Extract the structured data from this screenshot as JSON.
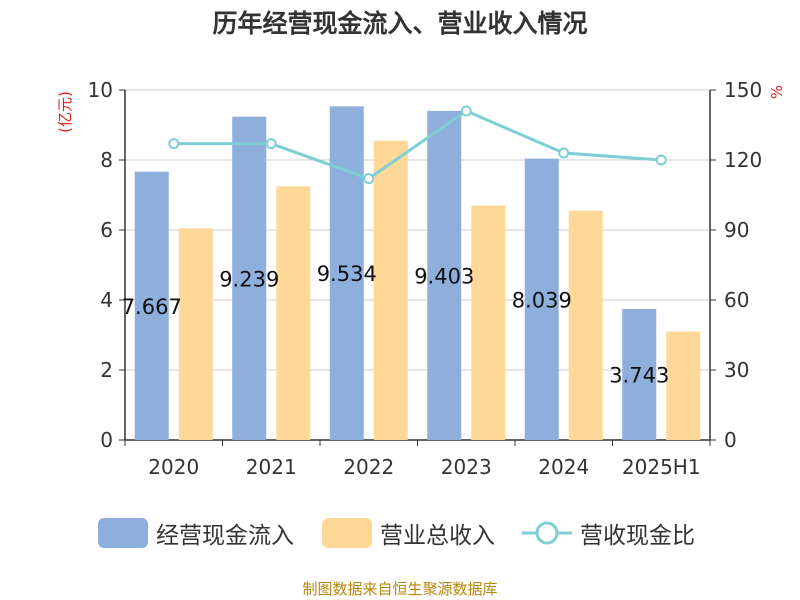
{
  "chart_data": {
    "type": "bar",
    "title": "历年经营现金流入、营业收入情况",
    "categories": [
      "2020",
      "2021",
      "2022",
      "2023",
      "2024",
      "2025H1"
    ],
    "series": [
      {
        "name": "经营现金流入",
        "type": "bar",
        "axis": "left",
        "values": [
          7.667,
          9.239,
          9.534,
          9.403,
          8.039,
          3.743
        ],
        "labels": [
          "7.667",
          "9.239",
          "9.534",
          "9.403",
          "8.039",
          "3.743"
        ],
        "color": "#8eaedc"
      },
      {
        "name": "营业总收入",
        "type": "bar",
        "axis": "left",
        "values": [
          6.05,
          7.25,
          8.55,
          6.7,
          6.55,
          3.1
        ],
        "color": "#ffd898"
      },
      {
        "name": "营收现金比",
        "type": "line",
        "axis": "right",
        "values": [
          127,
          127,
          112,
          141,
          123,
          120
        ],
        "color": "#7ecfd5"
      }
    ],
    "ylabel_left": "(亿元)",
    "ylabel_right": "%",
    "ylim_left": [
      0,
      10
    ],
    "ylim_right": [
      0,
      150
    ],
    "yticks_left": [
      "0",
      "2",
      "4",
      "6",
      "8",
      "10"
    ],
    "yticks_right": [
      "0",
      "30",
      "60",
      "90",
      "120",
      "150"
    ],
    "grid": true,
    "legend_position": "bottom"
  },
  "footer": {
    "source": "制图数据来自恒生聚源数据库"
  }
}
